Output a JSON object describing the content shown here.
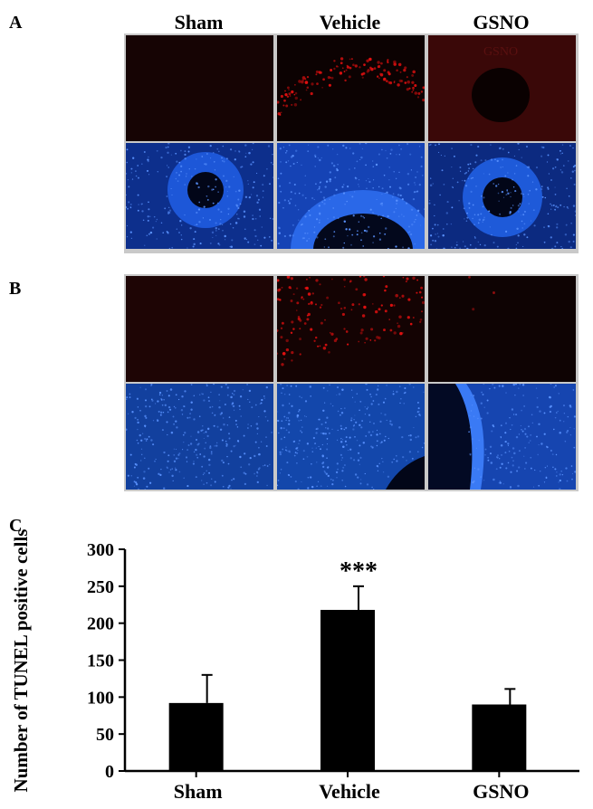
{
  "figure": {
    "panel_labels": [
      "A",
      "B",
      "C"
    ],
    "columns": [
      "Sham",
      "Vehicle",
      "GSNO"
    ],
    "stain_colors": {
      "tunel": "#e01010",
      "dapi": "#1f5fe6"
    },
    "overlay_text": "GSNO"
  },
  "chart_data": {
    "type": "bar",
    "categories": [
      "Sham",
      "Vehicle",
      "GSNO"
    ],
    "values": [
      92,
      218,
      90
    ],
    "errors": [
      38,
      32,
      21
    ],
    "annotations": [
      "",
      "***",
      ""
    ],
    "ylabel": "Number of TUNEL positive cells",
    "ylim": [
      0,
      300
    ],
    "yticks": [
      0,
      50,
      100,
      150,
      200,
      250,
      300
    ],
    "bar_color": "#000000",
    "grid": false
  }
}
